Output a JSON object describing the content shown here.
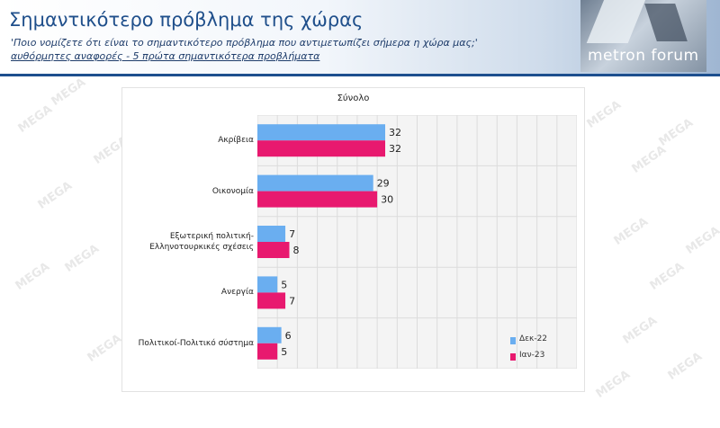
{
  "header": {
    "title": "Σημαντικότερο πρόβλημα της χώρας",
    "question": "'Ποιο νομίζετε ότι  είναι το σημαντικότερο πρόβλημα που αντιμετωπίζει σήμερα η χώρα μας;'",
    "subtitle": "αυθόρμητες αναφορές - 5 πρώτα σημαντικότερα προβλήματα"
  },
  "logo": {
    "text": "metron forum"
  },
  "watermark": "MEGA",
  "colors": {
    "series1": "#6aaef0",
    "series2": "#e8196f",
    "header_blue": "#1f4f8b"
  },
  "chart_data": {
    "type": "bar",
    "orientation": "horizontal",
    "title": "Σύνολο",
    "categories": [
      "Ακρίβεια",
      "Οικονομία",
      "Εξωτερική πολιτική-Ελληνοτουρκικές σχέσεις",
      "Ανεργία",
      "Πολιτικοί-Πολιτικό σύστημα"
    ],
    "category_lines": [
      [
        "Ακρίβεια"
      ],
      [
        "Οικονομία"
      ],
      [
        "Εξωτερική πολιτική-",
        "Ελληνοτουρκικές σχέσεις"
      ],
      [
        "Ανεργία"
      ],
      [
        "Πολιτικοί-Πολιτικό σύστημα"
      ]
    ],
    "series": [
      {
        "name": "Δεκ-22",
        "values": [
          32,
          29,
          7,
          5,
          6
        ]
      },
      {
        "name": "Ιαν-23",
        "values": [
          32,
          30,
          8,
          7,
          5
        ]
      }
    ],
    "xlim": [
      0,
      80
    ],
    "grid": true,
    "legend_position": "bottom-right"
  }
}
